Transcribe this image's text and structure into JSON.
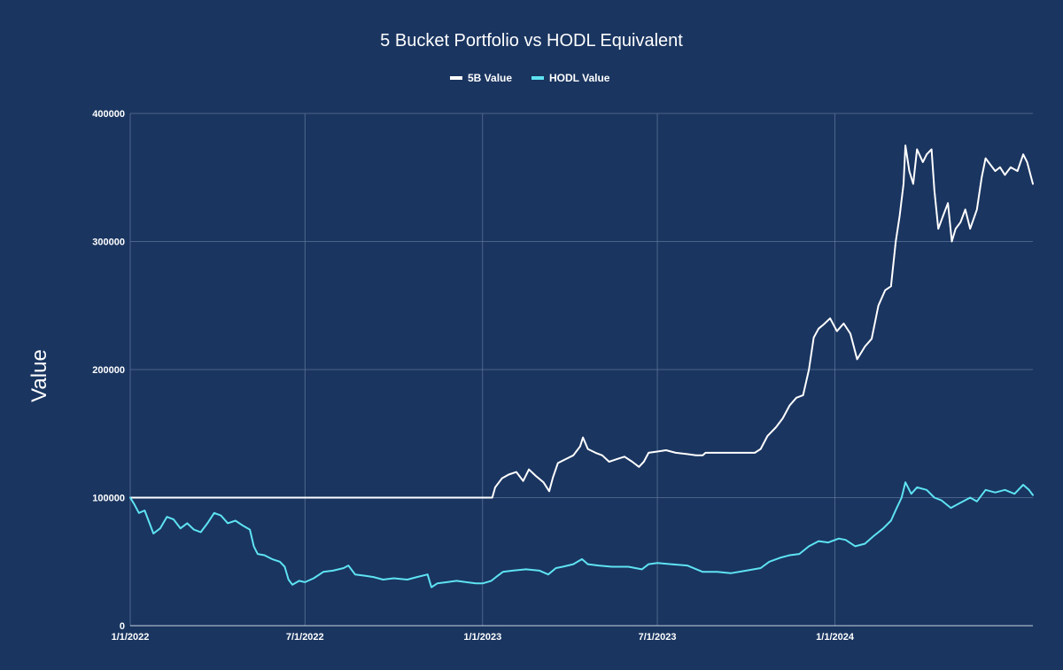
{
  "chart_data": {
    "type": "line",
    "title": "5 Bucket Portfolio vs HODL Equivalent",
    "xlabel": "",
    "ylabel": "Value",
    "xlim": [
      "2022-01-01",
      "2024-07-24"
    ],
    "ylim": [
      0,
      400000
    ],
    "yticks": [
      0,
      100000,
      200000,
      300000,
      400000
    ],
    "ytick_labels": [
      "0",
      "100000",
      "200000",
      "300000",
      "400000"
    ],
    "xticks": [
      "2022-01-01",
      "2022-07-01",
      "2023-01-01",
      "2023-07-01",
      "2024-01-01"
    ],
    "xtick_labels": [
      "1/1/2022",
      "7/1/2022",
      "1/1/2023",
      "7/1/2023",
      "1/1/2024"
    ],
    "grid": true,
    "legend_position": "top-center",
    "series": [
      {
        "name": "5B Value",
        "color": "#ffffff",
        "points": [
          [
            "2022-01-01",
            100000
          ],
          [
            "2022-04-01",
            100000
          ],
          [
            "2022-07-01",
            100000
          ],
          [
            "2022-10-01",
            100000
          ],
          [
            "2023-01-11",
            100000
          ],
          [
            "2023-01-14",
            108000
          ],
          [
            "2023-01-21",
            115000
          ],
          [
            "2023-01-28",
            118000
          ],
          [
            "2023-02-05",
            120000
          ],
          [
            "2023-02-12",
            113000
          ],
          [
            "2023-02-18",
            122000
          ],
          [
            "2023-02-25",
            117000
          ],
          [
            "2023-03-05",
            112000
          ],
          [
            "2023-03-11",
            105000
          ],
          [
            "2023-03-15",
            116000
          ],
          [
            "2023-03-20",
            127000
          ],
          [
            "2023-03-28",
            130000
          ],
          [
            "2023-04-05",
            133000
          ],
          [
            "2023-04-12",
            140000
          ],
          [
            "2023-04-15",
            147000
          ],
          [
            "2023-04-20",
            138000
          ],
          [
            "2023-04-28",
            135000
          ],
          [
            "2023-05-05",
            133000
          ],
          [
            "2023-05-12",
            128000
          ],
          [
            "2023-05-20",
            130000
          ],
          [
            "2023-05-28",
            132000
          ],
          [
            "2023-06-05",
            128000
          ],
          [
            "2023-06-12",
            124000
          ],
          [
            "2023-06-17",
            128000
          ],
          [
            "2023-06-22",
            135000
          ],
          [
            "2023-07-01",
            136000
          ],
          [
            "2023-07-10",
            137000
          ],
          [
            "2023-07-20",
            135000
          ],
          [
            "2023-08-01",
            134000
          ],
          [
            "2023-08-10",
            133000
          ],
          [
            "2023-08-17",
            133000
          ],
          [
            "2023-08-20",
            135000
          ],
          [
            "2023-09-05",
            135000
          ],
          [
            "2023-09-20",
            135000
          ],
          [
            "2023-10-10",
            135000
          ],
          [
            "2023-10-16",
            138000
          ],
          [
            "2023-10-23",
            148000
          ],
          [
            "2023-11-01",
            155000
          ],
          [
            "2023-11-08",
            162000
          ],
          [
            "2023-11-15",
            172000
          ],
          [
            "2023-11-22",
            178000
          ],
          [
            "2023-11-29",
            180000
          ],
          [
            "2023-12-05",
            200000
          ],
          [
            "2023-12-10",
            225000
          ],
          [
            "2023-12-15",
            232000
          ],
          [
            "2023-12-20",
            235000
          ],
          [
            "2023-12-27",
            240000
          ],
          [
            "2024-01-03",
            230000
          ],
          [
            "2024-01-10",
            236000
          ],
          [
            "2024-01-17",
            228000
          ],
          [
            "2024-01-24",
            208000
          ],
          [
            "2024-02-01",
            218000
          ],
          [
            "2024-02-08",
            224000
          ],
          [
            "2024-02-15",
            250000
          ],
          [
            "2024-02-22",
            262000
          ],
          [
            "2024-02-28",
            265000
          ],
          [
            "2024-03-04",
            300000
          ],
          [
            "2024-03-08",
            320000
          ],
          [
            "2024-03-12",
            345000
          ],
          [
            "2024-03-14",
            375000
          ],
          [
            "2024-03-18",
            355000
          ],
          [
            "2024-03-22",
            345000
          ],
          [
            "2024-03-26",
            372000
          ],
          [
            "2024-04-01",
            362000
          ],
          [
            "2024-04-05",
            368000
          ],
          [
            "2024-04-10",
            372000
          ],
          [
            "2024-04-13",
            340000
          ],
          [
            "2024-04-17",
            310000
          ],
          [
            "2024-04-22",
            320000
          ],
          [
            "2024-04-27",
            330000
          ],
          [
            "2024-05-01",
            300000
          ],
          [
            "2024-05-05",
            310000
          ],
          [
            "2024-05-10",
            315000
          ],
          [
            "2024-05-15",
            325000
          ],
          [
            "2024-05-20",
            310000
          ],
          [
            "2024-05-27",
            325000
          ],
          [
            "2024-06-01",
            350000
          ],
          [
            "2024-06-05",
            365000
          ],
          [
            "2024-06-10",
            360000
          ],
          [
            "2024-06-15",
            355000
          ],
          [
            "2024-06-20",
            358000
          ],
          [
            "2024-06-25",
            352000
          ],
          [
            "2024-07-01",
            358000
          ],
          [
            "2024-07-08",
            355000
          ],
          [
            "2024-07-14",
            368000
          ],
          [
            "2024-07-18",
            362000
          ],
          [
            "2024-07-24",
            345000
          ]
        ]
      },
      {
        "name": "HODL Value",
        "color": "#5ee3f2",
        "points": [
          [
            "2022-01-01",
            100000
          ],
          [
            "2022-01-05",
            95000
          ],
          [
            "2022-01-10",
            88000
          ],
          [
            "2022-01-16",
            90000
          ],
          [
            "2022-01-21",
            80000
          ],
          [
            "2022-01-25",
            72000
          ],
          [
            "2022-02-01",
            76000
          ],
          [
            "2022-02-08",
            85000
          ],
          [
            "2022-02-15",
            83000
          ],
          [
            "2022-02-22",
            76000
          ],
          [
            "2022-03-01",
            80000
          ],
          [
            "2022-03-08",
            75000
          ],
          [
            "2022-03-15",
            73000
          ],
          [
            "2022-03-22",
            80000
          ],
          [
            "2022-03-29",
            88000
          ],
          [
            "2022-04-05",
            86000
          ],
          [
            "2022-04-12",
            80000
          ],
          [
            "2022-04-20",
            82000
          ],
          [
            "2022-04-28",
            78000
          ],
          [
            "2022-05-05",
            75000
          ],
          [
            "2022-05-09",
            62000
          ],
          [
            "2022-05-13",
            56000
          ],
          [
            "2022-05-20",
            55000
          ],
          [
            "2022-05-28",
            52000
          ],
          [
            "2022-06-05",
            50000
          ],
          [
            "2022-06-10",
            46000
          ],
          [
            "2022-06-14",
            36000
          ],
          [
            "2022-06-18",
            32000
          ],
          [
            "2022-06-25",
            35000
          ],
          [
            "2022-07-01",
            34000
          ],
          [
            "2022-07-10",
            37000
          ],
          [
            "2022-07-20",
            42000
          ],
          [
            "2022-07-30",
            43000
          ],
          [
            "2022-08-10",
            45000
          ],
          [
            "2022-08-15",
            47000
          ],
          [
            "2022-08-22",
            40000
          ],
          [
            "2022-09-01",
            39000
          ],
          [
            "2022-09-10",
            38000
          ],
          [
            "2022-09-20",
            36000
          ],
          [
            "2022-10-01",
            37000
          ],
          [
            "2022-10-15",
            36000
          ],
          [
            "2022-10-25",
            38000
          ],
          [
            "2022-11-05",
            40000
          ],
          [
            "2022-11-09",
            30000
          ],
          [
            "2022-11-15",
            33000
          ],
          [
            "2022-11-25",
            34000
          ],
          [
            "2022-12-05",
            35000
          ],
          [
            "2022-12-15",
            34000
          ],
          [
            "2022-12-25",
            33000
          ],
          [
            "2023-01-01",
            33000
          ],
          [
            "2023-01-10",
            35000
          ],
          [
            "2023-01-15",
            38000
          ],
          [
            "2023-01-22",
            42000
          ],
          [
            "2023-02-01",
            43000
          ],
          [
            "2023-02-15",
            44000
          ],
          [
            "2023-03-01",
            43000
          ],
          [
            "2023-03-10",
            40000
          ],
          [
            "2023-03-18",
            45000
          ],
          [
            "2023-03-25",
            46000
          ],
          [
            "2023-04-05",
            48000
          ],
          [
            "2023-04-14",
            52000
          ],
          [
            "2023-04-20",
            48000
          ],
          [
            "2023-05-01",
            47000
          ],
          [
            "2023-05-15",
            46000
          ],
          [
            "2023-06-01",
            46000
          ],
          [
            "2023-06-15",
            44000
          ],
          [
            "2023-06-22",
            48000
          ],
          [
            "2023-07-01",
            49000
          ],
          [
            "2023-07-15",
            48000
          ],
          [
            "2023-08-01",
            47000
          ],
          [
            "2023-08-17",
            42000
          ],
          [
            "2023-09-01",
            42000
          ],
          [
            "2023-09-15",
            41000
          ],
          [
            "2023-10-01",
            43000
          ],
          [
            "2023-10-16",
            45000
          ],
          [
            "2023-10-25",
            50000
          ],
          [
            "2023-11-05",
            53000
          ],
          [
            "2023-11-15",
            55000
          ],
          [
            "2023-11-25",
            56000
          ],
          [
            "2023-12-05",
            62000
          ],
          [
            "2023-12-15",
            66000
          ],
          [
            "2023-12-25",
            65000
          ],
          [
            "2024-01-05",
            68000
          ],
          [
            "2024-01-12",
            67000
          ],
          [
            "2024-01-22",
            62000
          ],
          [
            "2024-02-01",
            64000
          ],
          [
            "2024-02-10",
            70000
          ],
          [
            "2024-02-20",
            76000
          ],
          [
            "2024-02-28",
            82000
          ],
          [
            "2024-03-05",
            92000
          ],
          [
            "2024-03-10",
            100000
          ],
          [
            "2024-03-14",
            112000
          ],
          [
            "2024-03-20",
            103000
          ],
          [
            "2024-03-26",
            108000
          ],
          [
            "2024-04-05",
            106000
          ],
          [
            "2024-04-13",
            100000
          ],
          [
            "2024-04-20",
            98000
          ],
          [
            "2024-04-30",
            92000
          ],
          [
            "2024-05-10",
            96000
          ],
          [
            "2024-05-20",
            100000
          ],
          [
            "2024-05-27",
            97000
          ],
          [
            "2024-06-05",
            106000
          ],
          [
            "2024-06-15",
            104000
          ],
          [
            "2024-06-25",
            106000
          ],
          [
            "2024-07-05",
            103000
          ],
          [
            "2024-07-14",
            110000
          ],
          [
            "2024-07-20",
            106000
          ],
          [
            "2024-07-24",
            102000
          ]
        ]
      }
    ]
  }
}
